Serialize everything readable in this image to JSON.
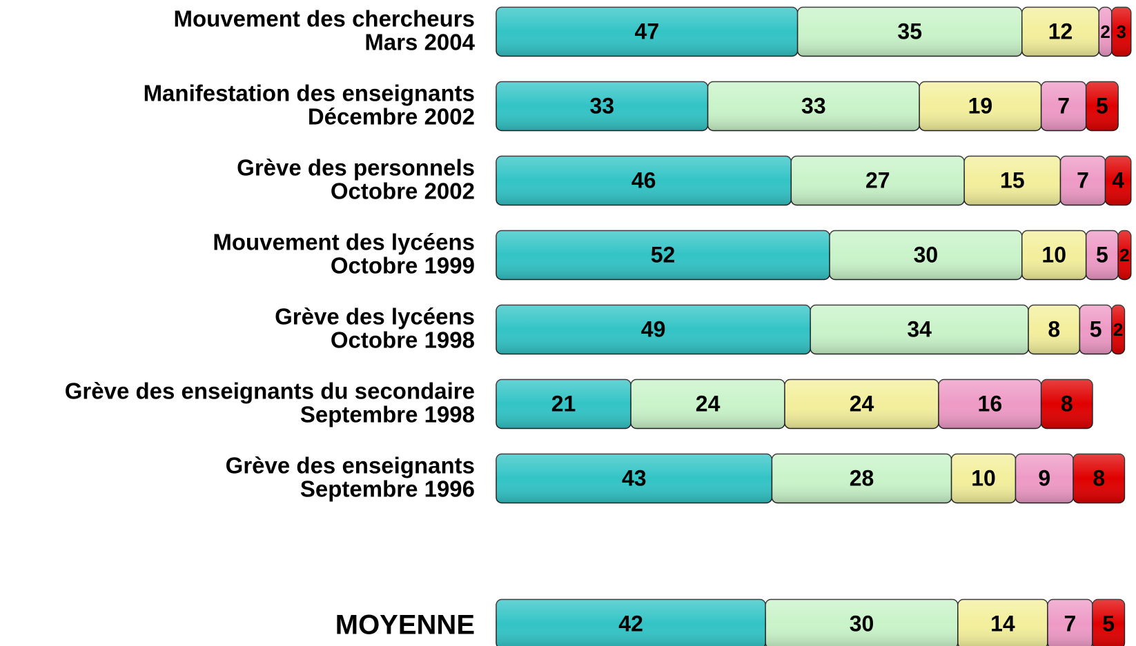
{
  "chart_data": {
    "type": "stacked-bar-horizontal",
    "categories": [
      [
        "Mouvement des chercheurs",
        "Mars 2004"
      ],
      [
        "Manifestation des enseignants",
        "Décembre 2002"
      ],
      [
        "Grève des personnels",
        "Octobre 2002"
      ],
      [
        "Mouvement des lycéens",
        "Octobre 1999"
      ],
      [
        "Grève des lycéens",
        "Octobre 1998"
      ],
      [
        "Grève des enseignants du secondaire",
        "Septembre 1998"
      ],
      [
        "Grève des enseignants",
        "Septembre 1996"
      ],
      [
        "MOYENNE"
      ]
    ],
    "series": [
      {
        "color": "#33c4c6",
        "values": [
          47,
          33,
          46,
          52,
          49,
          21,
          43,
          42
        ]
      },
      {
        "color": "#c9f3c9",
        "values": [
          35,
          33,
          27,
          30,
          34,
          24,
          28,
          30
        ]
      },
      {
        "color": "#f3ef9c",
        "values": [
          12,
          19,
          15,
          10,
          8,
          24,
          10,
          14
        ]
      },
      {
        "color": "#ee9ac6",
        "values": [
          2,
          7,
          7,
          5,
          5,
          16,
          9,
          7
        ]
      },
      {
        "color": "#e00000",
        "values": [
          3,
          5,
          4,
          2,
          2,
          8,
          8,
          5
        ]
      }
    ],
    "xlim": [
      0,
      100
    ]
  }
}
